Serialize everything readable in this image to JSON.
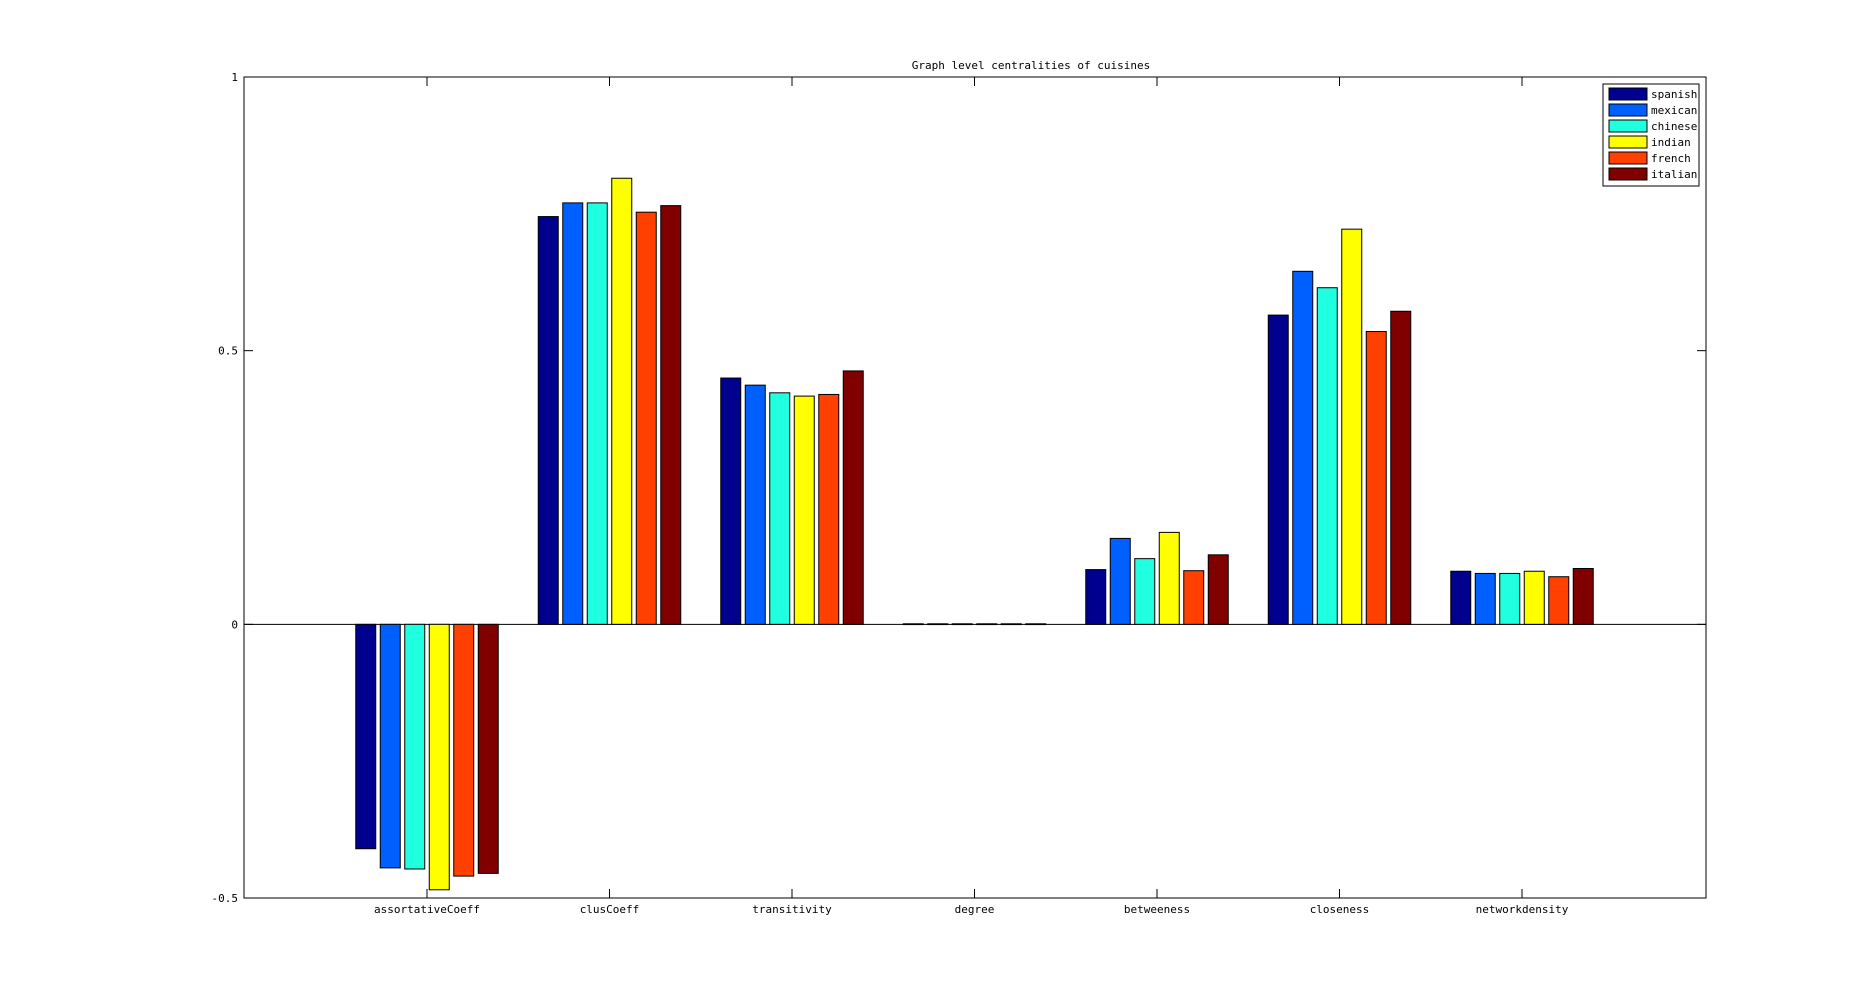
{
  "chart_data": {
    "type": "bar",
    "title": "Graph level centralities of cuisines",
    "xlabel": "",
    "ylabel": "",
    "categories": [
      "assortativeCoeff",
      "clusCoeff",
      "transitivity",
      "degree",
      "betweeness",
      "closeness",
      "networkdensity"
    ],
    "ylim": [
      -0.5,
      1
    ],
    "yticks": [
      -0.5,
      0,
      0.5,
      1
    ],
    "ytick_labels": [
      "-0.5",
      "0",
      "0.5",
      "1"
    ],
    "grid": false,
    "legend_position": "top-right",
    "series": [
      {
        "name": "spanish",
        "color": "#00008f",
        "values": [
          -0.41,
          0.745,
          0.45,
          0.001,
          0.1,
          0.565,
          0.097
        ]
      },
      {
        "name": "mexican",
        "color": "#0060ff",
        "values": [
          -0.445,
          0.77,
          0.437,
          0.001,
          0.157,
          0.645,
          0.093
        ]
      },
      {
        "name": "chinese",
        "color": "#20ffdf",
        "values": [
          -0.447,
          0.77,
          0.423,
          0.001,
          0.12,
          0.615,
          0.093
        ]
      },
      {
        "name": "indian",
        "color": "#ffff00",
        "values": [
          -0.485,
          0.815,
          0.417,
          0.001,
          0.168,
          0.722,
          0.097
        ]
      },
      {
        "name": "french",
        "color": "#ff4000",
        "values": [
          -0.46,
          0.753,
          0.42,
          0.001,
          0.098,
          0.535,
          0.087
        ]
      },
      {
        "name": "italian",
        "color": "#800000",
        "values": [
          -0.455,
          0.765,
          0.463,
          0.001,
          0.127,
          0.572,
          0.102
        ]
      }
    ]
  }
}
